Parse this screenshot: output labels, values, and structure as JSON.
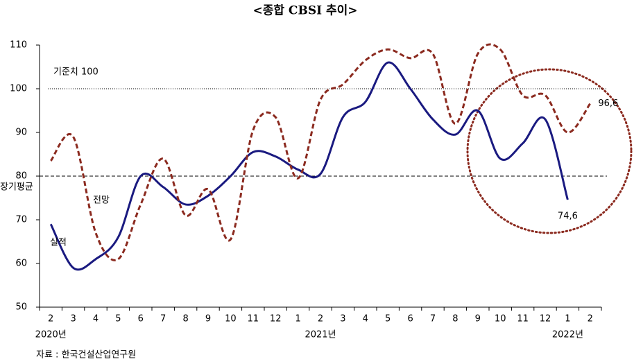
{
  "chart_data": {
    "type": "line",
    "title": "<종합 CBSI 추이>",
    "categories": [
      "2",
      "3",
      "4",
      "5",
      "6",
      "7",
      "8",
      "9",
      "10",
      "11",
      "12",
      "1",
      "2",
      "3",
      "4",
      "5",
      "6",
      "7",
      "8",
      "9",
      "10",
      "11",
      "12",
      "1",
      "2"
    ],
    "year_labels": [
      {
        "index": 0,
        "label": "2020년"
      },
      {
        "index": 12,
        "label": "2021년"
      },
      {
        "index": 23,
        "label": "2022년"
      }
    ],
    "series": [
      {
        "name": "실적",
        "color": "#1a1a80",
        "dash": false,
        "values": [
          69,
          59,
          61,
          66,
          80,
          77.5,
          73.5,
          75.5,
          80,
          85.5,
          84.5,
          81.5,
          80.5,
          93.5,
          97,
          106,
          100,
          93,
          89.5,
          95,
          84,
          87.5,
          93,
          74.6,
          null
        ],
        "value_labels": [
          null,
          null,
          null,
          null,
          null,
          null,
          null,
          null,
          null,
          null,
          null,
          null,
          null,
          null,
          null,
          null,
          null,
          null,
          null,
          null,
          null,
          null,
          null,
          "74,6",
          null
        ]
      },
      {
        "name": "전망",
        "color": "#8b2a1f",
        "dash": true,
        "values": [
          83.5,
          89,
          67,
          61,
          73.5,
          84,
          71,
          77,
          65.5,
          90.5,
          93.5,
          79.5,
          97.5,
          101,
          106.5,
          109,
          107,
          108,
          92,
          108,
          109,
          98.5,
          98.5,
          90,
          96.6
        ],
        "value_labels": [
          null,
          null,
          null,
          null,
          null,
          null,
          null,
          null,
          null,
          null,
          null,
          null,
          null,
          null,
          null,
          null,
          null,
          null,
          null,
          null,
          null,
          null,
          null,
          null,
          "96,6"
        ]
      }
    ],
    "reference_lines": [
      {
        "value": 100,
        "label": "기준치 100",
        "style": "dotted"
      },
      {
        "value": 80,
        "label": "장기평균",
        "style": "dashed"
      }
    ],
    "ylim": [
      50,
      110
    ],
    "yticks": [
      50,
      60,
      70,
      80,
      90,
      100,
      110
    ],
    "source": "자료 : 한국건설산업연구원"
  }
}
